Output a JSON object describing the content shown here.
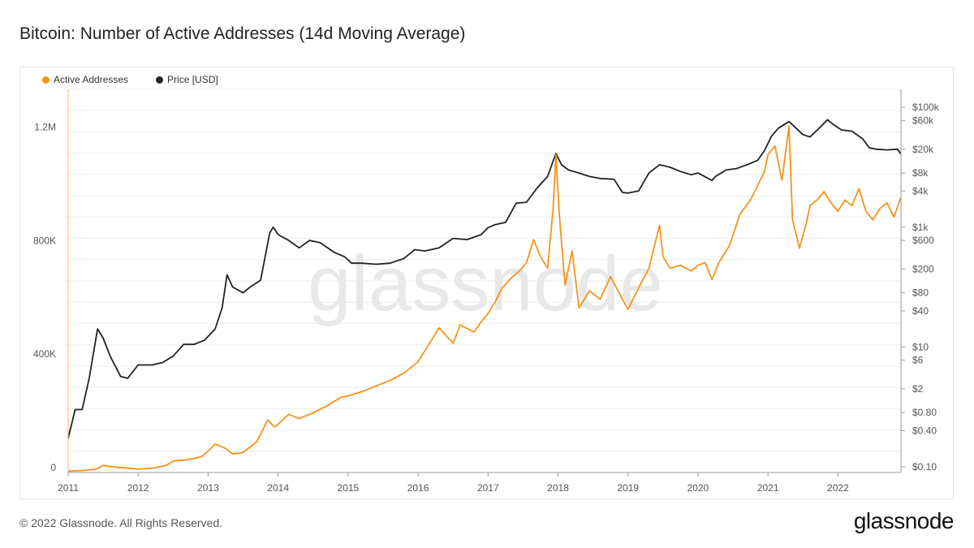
{
  "title": "Bitcoin: Number of Active Addresses (14d Moving Average)",
  "watermark": "glassnode",
  "footer": {
    "copyright": "© 2022 Glassnode. All Rights Reserved.",
    "logo": "glassnode"
  },
  "colors": {
    "active_addresses": "#f7931a",
    "price": "#222222",
    "grid": "#ececec",
    "axis_text": "#555555",
    "watermark": "#e8e8e8"
  },
  "chart_data": {
    "type": "line",
    "title": "Bitcoin: Number of Active Addresses (14d Moving Average)",
    "legend_position": "top-left",
    "grid": true,
    "x_ticks": [
      "2011",
      "2012",
      "2013",
      "2014",
      "2015",
      "2016",
      "2017",
      "2018",
      "2019",
      "2020",
      "2021",
      "2022"
    ],
    "x_range": [
      2011.0,
      2022.9
    ],
    "y_left": {
      "scale": "linear",
      "range": [
        0,
        1350000
      ],
      "ticks": [
        0,
        400000,
        800000,
        1200000
      ],
      "tick_labels": [
        "0",
        "400K",
        "800K",
        "1.2M"
      ]
    },
    "y_right": {
      "scale": "log",
      "range": [
        0.08,
        200000
      ],
      "ticks": [
        100000,
        60000,
        20000,
        8000,
        4000,
        1000,
        600,
        200,
        80,
        40,
        10,
        6,
        2,
        0.8,
        0.4,
        0.1
      ],
      "tick_labels": [
        "$100k",
        "$60k",
        "$20k",
        "$8k",
        "$4k",
        "$1k",
        "$600",
        "$200",
        "$80",
        "$40",
        "$10",
        "$6",
        "$2",
        "$0.80",
        "$0.40",
        "$0.10"
      ]
    },
    "series": [
      {
        "name": "Active Addresses",
        "axis": "left",
        "x": [
          2011.0,
          2011.2,
          2011.4,
          2011.5,
          2011.7,
          2011.9,
          2012.0,
          2012.2,
          2012.4,
          2012.5,
          2012.7,
          2012.9,
          2013.0,
          2013.1,
          2013.25,
          2013.35,
          2013.5,
          2013.7,
          2013.85,
          2013.95,
          2014.0,
          2014.15,
          2014.3,
          2014.5,
          2014.7,
          2014.9,
          2015.0,
          2015.2,
          2015.4,
          2015.6,
          2015.8,
          2015.9,
          2016.0,
          2016.1,
          2016.3,
          2016.5,
          2016.6,
          2016.8,
          2016.9,
          2017.0,
          2017.1,
          2017.2,
          2017.35,
          2017.45,
          2017.55,
          2017.65,
          2017.75,
          2017.85,
          2017.93,
          2017.97,
          2018.02,
          2018.1,
          2018.2,
          2018.3,
          2018.45,
          2018.6,
          2018.75,
          2018.9,
          2019.0,
          2019.15,
          2019.3,
          2019.45,
          2019.5,
          2019.6,
          2019.75,
          2019.9,
          2020.0,
          2020.1,
          2020.2,
          2020.3,
          2020.45,
          2020.6,
          2020.75,
          2020.85,
          2020.95,
          2021.0,
          2021.1,
          2021.2,
          2021.3,
          2021.35,
          2021.45,
          2021.55,
          2021.6,
          2021.7,
          2021.8,
          2021.9,
          2022.0,
          2022.1,
          2022.2,
          2022.3,
          2022.4,
          2022.5,
          2022.6,
          2022.7,
          2022.8,
          2022.9
        ],
        "y": [
          5000,
          7000,
          12000,
          25000,
          18000,
          15000,
          12000,
          15000,
          25000,
          40000,
          45000,
          55000,
          75000,
          100000,
          85000,
          65000,
          70000,
          110000,
          185000,
          160000,
          170000,
          205000,
          190000,
          210000,
          235000,
          265000,
          270000,
          285000,
          305000,
          325000,
          350000,
          370000,
          390000,
          430000,
          510000,
          455000,
          520000,
          495000,
          530000,
          560000,
          600000,
          650000,
          690000,
          710000,
          740000,
          820000,
          760000,
          720000,
          930000,
          1120000,
          900000,
          660000,
          780000,
          580000,
          640000,
          610000,
          690000,
          620000,
          575000,
          650000,
          720000,
          870000,
          760000,
          720000,
          730000,
          710000,
          730000,
          740000,
          680000,
          740000,
          800000,
          910000,
          960000,
          1010000,
          1060000,
          1120000,
          1150000,
          1030000,
          1220000,
          890000,
          790000,
          880000,
          940000,
          960000,
          990000,
          950000,
          920000,
          960000,
          940000,
          1000000,
          920000,
          890000,
          930000,
          950000,
          900000,
          970000
        ]
      },
      {
        "name": "Price [USD]",
        "axis": "right",
        "x": [
          2011.0,
          2011.1,
          2011.2,
          2011.3,
          2011.42,
          2011.5,
          2011.6,
          2011.75,
          2011.85,
          2012.0,
          2012.2,
          2012.35,
          2012.5,
          2012.65,
          2012.8,
          2012.95,
          2013.1,
          2013.2,
          2013.27,
          2013.35,
          2013.5,
          2013.6,
          2013.75,
          2013.88,
          2013.93,
          2014.0,
          2014.15,
          2014.3,
          2014.45,
          2014.6,
          2014.8,
          2014.95,
          2015.05,
          2015.2,
          2015.4,
          2015.6,
          2015.8,
          2015.95,
          2016.1,
          2016.3,
          2016.5,
          2016.7,
          2016.9,
          2017.0,
          2017.1,
          2017.25,
          2017.4,
          2017.55,
          2017.7,
          2017.85,
          2017.97,
          2018.05,
          2018.15,
          2018.3,
          2018.45,
          2018.6,
          2018.8,
          2018.92,
          2019.0,
          2019.15,
          2019.3,
          2019.45,
          2019.6,
          2019.75,
          2019.9,
          2020.0,
          2020.2,
          2020.25,
          2020.4,
          2020.55,
          2020.7,
          2020.85,
          2020.95,
          2021.05,
          2021.15,
          2021.3,
          2021.4,
          2021.5,
          2021.6,
          2021.75,
          2021.85,
          2021.95,
          2022.05,
          2022.2,
          2022.35,
          2022.45,
          2022.55,
          2022.7,
          2022.85,
          2022.9
        ],
        "y": [
          0.3,
          0.9,
          0.9,
          3,
          20,
          14,
          7,
          3.2,
          3,
          5,
          5,
          5.5,
          7,
          11,
          11,
          13,
          20,
          45,
          160,
          100,
          80,
          100,
          130,
          800,
          1000,
          750,
          600,
          450,
          600,
          550,
          380,
          320,
          250,
          250,
          240,
          250,
          300,
          420,
          400,
          450,
          650,
          620,
          750,
          980,
          1100,
          1200,
          2500,
          2600,
          4500,
          7000,
          17000,
          11000,
          9000,
          8000,
          7000,
          6500,
          6300,
          3800,
          3700,
          4000,
          8000,
          11000,
          10000,
          8500,
          7500,
          8000,
          6000,
          7000,
          9000,
          9500,
          11000,
          13000,
          19000,
          33000,
          45000,
          58000,
          45000,
          35000,
          32000,
          47000,
          62000,
          50000,
          42000,
          40000,
          30000,
          21000,
          20000,
          19500,
          20000,
          16500
        ]
      }
    ]
  }
}
